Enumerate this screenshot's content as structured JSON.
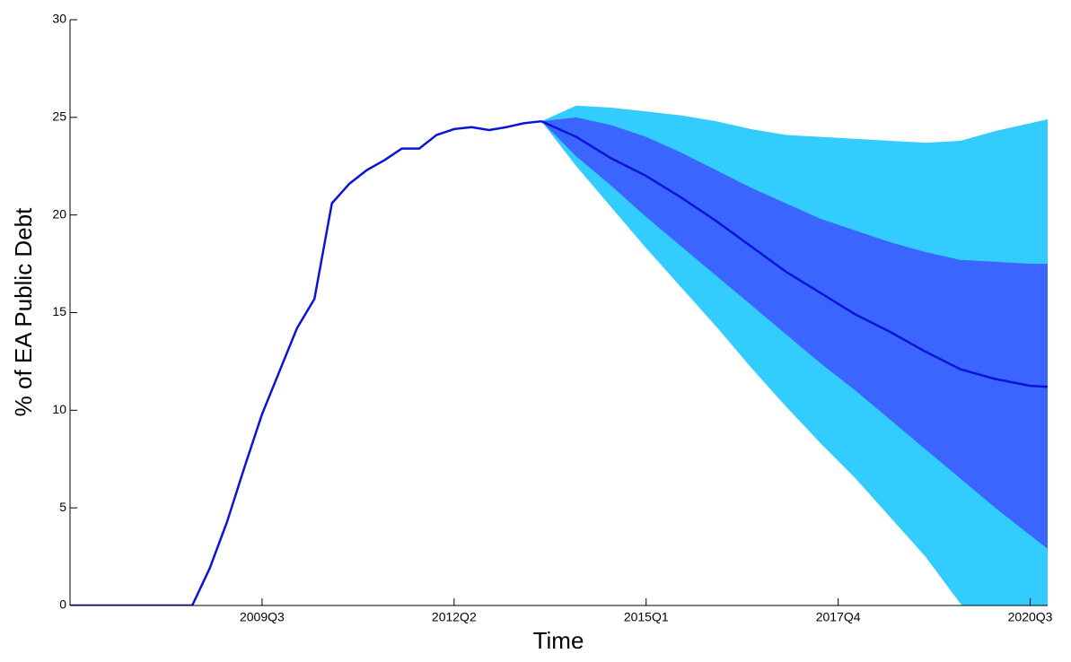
{
  "chart_data": {
    "type": "fan",
    "xlabel": "Time",
    "ylabel": "% of EA Public Debt",
    "xlim": [
      2006.75,
      2020.75
    ],
    "xticks": [
      {
        "value": 2009.5,
        "label": "2009Q3"
      },
      {
        "value": 2012.25,
        "label": "2012Q2"
      },
      {
        "value": 2015.0,
        "label": "2015Q1"
      },
      {
        "value": 2017.75,
        "label": "2017Q4"
      },
      {
        "value": 2020.5,
        "label": "2020Q3"
      }
    ],
    "ylim": [
      0,
      30
    ],
    "yticks": [
      0,
      5,
      10,
      15,
      20,
      25,
      30
    ],
    "bands": [
      {
        "color": "#33ccff",
        "x": [
          2013.5,
          2014,
          2014.5,
          2015,
          2015.5,
          2016,
          2016.5,
          2017,
          2017.5,
          2018,
          2018.5,
          2019,
          2019.5,
          2020,
          2020.5,
          2020.75
        ],
        "upper": [
          24.8,
          25.6,
          25.5,
          25.3,
          25.1,
          24.8,
          24.4,
          24.1,
          24.0,
          23.9,
          23.8,
          23.7,
          23.8,
          24.3,
          24.7,
          24.9
        ],
        "lower": [
          24.8,
          22.5,
          20.4,
          18.3,
          16.3,
          14.3,
          12.2,
          10.2,
          8.3,
          6.5,
          4.5,
          2.5,
          0.1,
          -1.5,
          -2.4,
          -3.0
        ]
      },
      {
        "color": "#3a66ff",
        "x": [
          2013.5,
          2014,
          2014.5,
          2015,
          2015.5,
          2016,
          2016.5,
          2017,
          2017.5,
          2018,
          2018.5,
          2019,
          2019.5,
          2020,
          2020.5,
          2020.75
        ],
        "upper": [
          24.8,
          25.0,
          24.6,
          24.0,
          23.2,
          22.3,
          21.4,
          20.6,
          19.8,
          19.2,
          18.6,
          18.1,
          17.7,
          17.6,
          17.5,
          17.5
        ],
        "lower": [
          24.8,
          23.0,
          21.5,
          19.9,
          18.4,
          16.9,
          15.4,
          13.9,
          12.4,
          11.0,
          9.5,
          8.0,
          6.5,
          5.0,
          3.6,
          2.9
        ]
      }
    ],
    "series": [
      {
        "color": "#0a14d9",
        "x": [
          2006.75,
          2008.5,
          2008.75,
          2009.0,
          2009.25,
          2009.5,
          2009.75,
          2010.0,
          2010.25,
          2010.5,
          2010.75,
          2011.0,
          2011.25,
          2011.5,
          2011.75,
          2012.0,
          2012.25,
          2012.5,
          2012.75,
          2013.0,
          2013.25,
          2013.5
        ],
        "values": [
          0,
          0,
          1.9,
          4.3,
          7.1,
          9.8,
          12.0,
          14.2,
          15.7,
          20.6,
          21.6,
          22.3,
          22.8,
          23.4,
          23.4,
          24.1,
          24.4,
          24.5,
          24.35,
          24.5,
          24.7,
          24.8
        ]
      },
      {
        "color": "#0a14d9",
        "x": [
          2013.5,
          2014,
          2014.5,
          2015,
          2015.5,
          2016,
          2016.5,
          2017,
          2017.5,
          2018,
          2018.5,
          2019,
          2019.5,
          2020,
          2020.5,
          2020.75
        ],
        "values": [
          24.8,
          24.0,
          22.9,
          22.0,
          20.9,
          19.7,
          18.4,
          17.1,
          16.0,
          14.9,
          14.0,
          13.0,
          12.1,
          11.6,
          11.25,
          11.2
        ]
      }
    ]
  }
}
